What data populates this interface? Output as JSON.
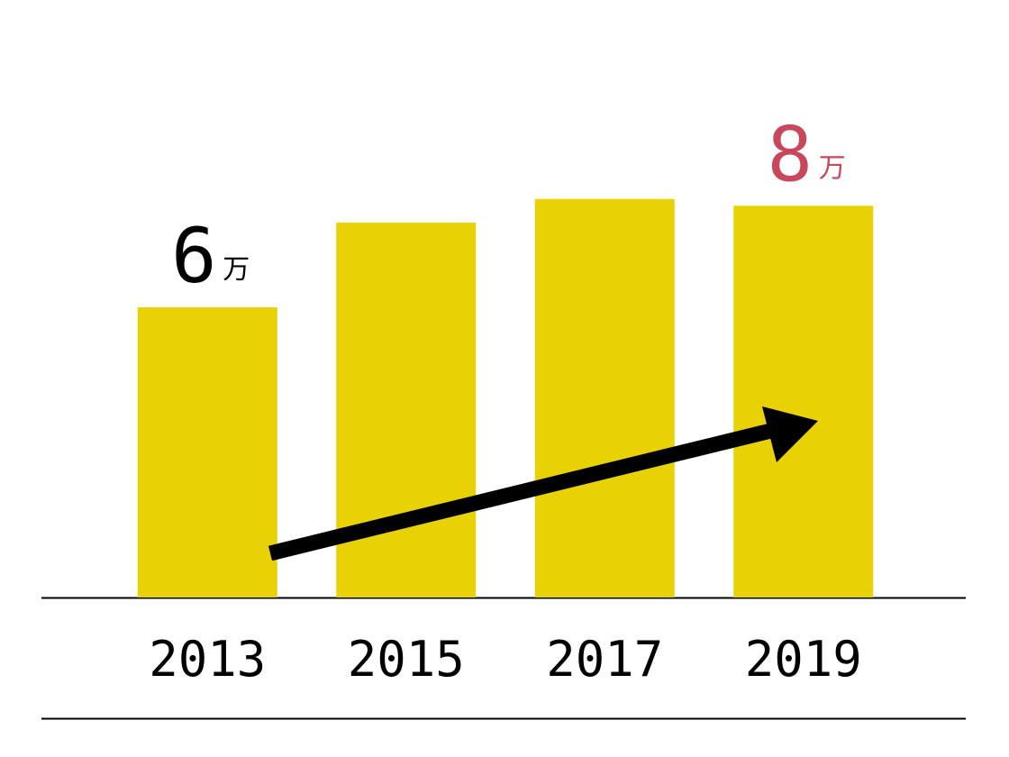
{
  "chart_data": {
    "type": "bar",
    "categories": [
      "2013",
      "2015",
      "2017",
      "2019"
    ],
    "values": [
      6,
      7.75,
      8.24,
      8.1
    ],
    "value_labels": [
      "6",
      null,
      null,
      "8"
    ],
    "value_label_colors": [
      "#000000",
      null,
      null,
      "#c8475a"
    ],
    "unit": "万",
    "color": "#e8d105"
  }
}
